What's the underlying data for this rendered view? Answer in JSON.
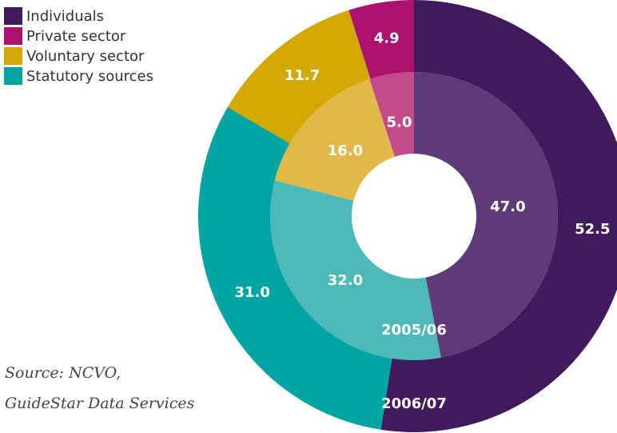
{
  "chart_data": {
    "type": "donut",
    "categories": [
      "Individuals",
      "Private sector",
      "Voluntary sector",
      "Statutory sources"
    ],
    "legend": "top-left",
    "rings": [
      {
        "name": "2005/06",
        "values": [
          47.0,
          5.0,
          16.0,
          32.0
        ],
        "value_labels": [
          "47.0",
          "5.0",
          "16.0",
          "32.0"
        ],
        "colors": [
          "#5e3a78",
          "#c14c8a",
          "#e3b84a",
          "#4db9b8"
        ]
      },
      {
        "name": "2006/07",
        "values": [
          52.5,
          4.9,
          11.7,
          31.0
        ],
        "value_labels": [
          "52.5",
          "4.9",
          "11.7",
          "31.0"
        ],
        "colors": [
          "#3f1a5c",
          "#ad1170",
          "#d3a800",
          "#00a4a3"
        ]
      }
    ],
    "source": [
      "Source: NCVO,",
      "GuideStar Data Services"
    ]
  }
}
